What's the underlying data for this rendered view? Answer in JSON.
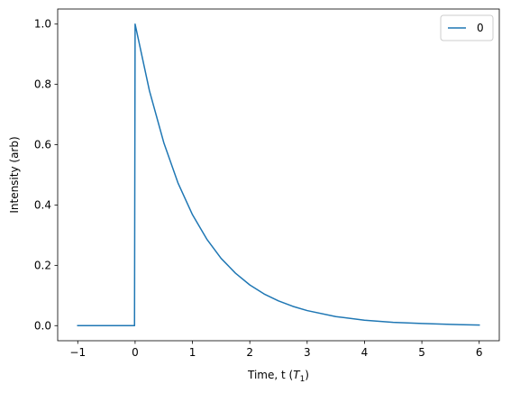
{
  "chart_data": {
    "type": "line",
    "xlabel": "Time, t (T1)",
    "xlabel_parts": {
      "prefix": "Time, t (",
      "italic": "T",
      "subscript": "1",
      "suffix": ")"
    },
    "ylabel": "Intensity (arb)",
    "xlim": [
      -1.35,
      6.35
    ],
    "ylim": [
      -0.05,
      1.05
    ],
    "xticks": [
      -1,
      0,
      1,
      2,
      3,
      4,
      5,
      6
    ],
    "xtick_labels": [
      "−1",
      "0",
      "1",
      "2",
      "3",
      "4",
      "5",
      "6"
    ],
    "yticks": [
      0.0,
      0.2,
      0.4,
      0.6,
      0.8,
      1.0
    ],
    "ytick_labels": [
      "0.0",
      "0.2",
      "0.4",
      "0.6",
      "0.8",
      "1.0"
    ],
    "grid": false,
    "legend": {
      "placement": "upper right",
      "entries": [
        "0"
      ]
    },
    "series": [
      {
        "name": "0",
        "color": "#1f77b4",
        "x": [
          -1.0,
          -0.5,
          -0.01,
          0.0,
          0.25,
          0.5,
          0.75,
          1.0,
          1.25,
          1.5,
          1.75,
          2.0,
          2.25,
          2.5,
          2.75,
          3.0,
          3.5,
          4.0,
          4.5,
          5.0,
          5.5,
          6.0
        ],
        "y": [
          0.0,
          0.0,
          0.0,
          1.0,
          0.779,
          0.607,
          0.472,
          0.368,
          0.287,
          0.223,
          0.174,
          0.135,
          0.105,
          0.082,
          0.064,
          0.05,
          0.03,
          0.018,
          0.011,
          0.007,
          0.004,
          0.002
        ]
      }
    ]
  }
}
